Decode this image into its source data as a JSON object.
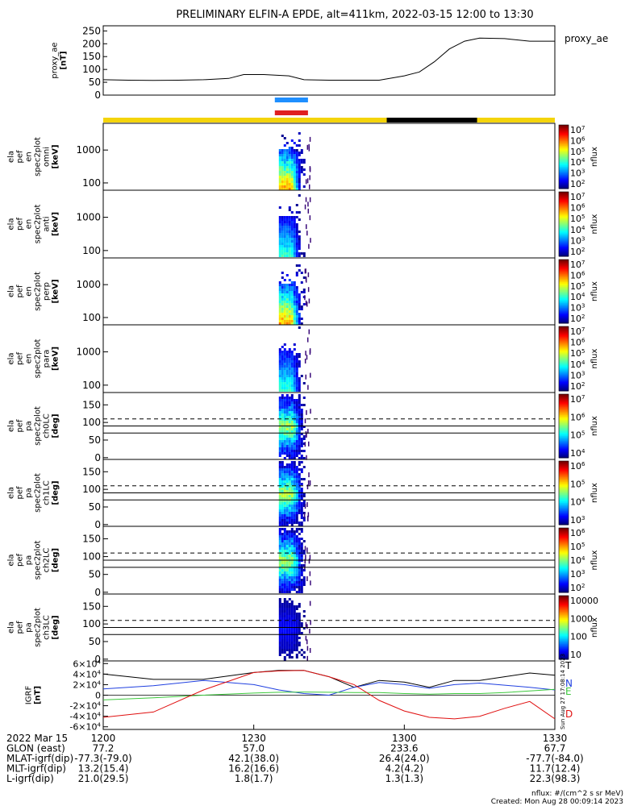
{
  "title": "PRELIMINARY ELFIN-A EPDE, alt=411km, 2022-03-15 12:00 to 13:30",
  "footer": {
    "units": "nflux: #/(cm^2 s sr MeV)",
    "created": "Created: Mon Aug 28 00:09:14 2023",
    "side_stamp": "Sun Aug 27 17:08:14 2023"
  },
  "time_axis": {
    "tick_labels": [
      "1200",
      "1230",
      "1300",
      "1330"
    ],
    "tick_minutes": [
      0,
      30,
      60,
      90
    ],
    "xlim_minutes": [
      0,
      90
    ]
  },
  "orbit_table": {
    "rows": [
      {
        "label": "2022 Mar 15",
        "values": [
          "1200",
          "1230",
          "1300",
          "1330"
        ]
      },
      {
        "label": "GLON (east)",
        "values": [
          "77.2",
          "57.0",
          "233.6",
          "67.7"
        ]
      },
      {
        "label": "MLAT-igrf(dip)",
        "values": [
          "-77.3(-79.0)",
          "42.1(38.0)",
          "26.4(24.0)",
          "-77.7(-84.0)"
        ]
      },
      {
        "label": "MLT-igrf(dip)",
        "values": [
          "13.2(15.4)",
          "16.2(16.6)",
          "4.2(4.2)",
          "11.7(12.4)"
        ]
      },
      {
        "label": "L-igrf(dip)",
        "values": [
          "21.0(29.5)",
          "1.8(1.7)",
          "1.3(1.3)",
          "22.3(98.3)"
        ]
      }
    ]
  },
  "colors": {
    "sci_blue": "#1f8fff",
    "sci_red": "#e02020",
    "status_yellow": "#f4d40b",
    "status_black": "#000000",
    "igrf_T": "#000000",
    "igrf_N": "#2040e0",
    "igrf_E": "#3cc83c",
    "igrf_D": "#e01010"
  },
  "chart_data": [
    {
      "type": "line",
      "panel": "proxy_ae",
      "ylabel_lines": [
        "proxy_ae",
        "[nT]"
      ],
      "legend": "proxy_ae",
      "ylim": [
        0,
        270
      ],
      "yticks": [
        "0",
        "50",
        "100",
        "150",
        "200",
        "250"
      ],
      "ytick_values": [
        0,
        50,
        100,
        150,
        200,
        250
      ],
      "x_minutes": [
        0,
        5,
        10,
        15,
        20,
        25,
        28,
        32,
        37,
        40,
        45,
        50,
        55,
        60,
        63,
        66,
        69,
        72,
        75,
        80,
        85,
        90
      ],
      "values": [
        60,
        58,
        57,
        58,
        60,
        65,
        80,
        80,
        75,
        60,
        58,
        58,
        58,
        75,
        90,
        130,
        180,
        210,
        222,
        220,
        210,
        210
      ]
    },
    {
      "type": "heatmap",
      "panel": "ela_pef_en_spec2plot_omni",
      "ylabel_lines": [
        "ela",
        "pef",
        "en",
        "spec2plot",
        "omni",
        "[keV]"
      ],
      "yticks": [
        "100",
        "1000"
      ],
      "ytick_values": [
        100,
        1000
      ],
      "ylim": [
        60,
        6500
      ],
      "yscale": "log",
      "colorbar": {
        "label": "nflux",
        "ticks": [
          "10^2",
          "10^3",
          "10^4",
          "10^5",
          "10^6",
          "10^7"
        ]
      },
      "activity_minutes": [
        35,
        40
      ]
    },
    {
      "type": "heatmap",
      "panel": "ela_pef_en_spec2plot_anti",
      "ylabel_lines": [
        "ela",
        "pef",
        "en",
        "spec2plot",
        "anti",
        "[keV]"
      ],
      "yticks": [
        "100",
        "1000"
      ],
      "ytick_values": [
        100,
        1000
      ],
      "ylim": [
        60,
        6500
      ],
      "yscale": "log",
      "colorbar": {
        "label": "nflux",
        "ticks": [
          "10^2",
          "10^3",
          "10^4",
          "10^5",
          "10^6",
          "10^7"
        ]
      },
      "activity_minutes": [
        35,
        40
      ]
    },
    {
      "type": "heatmap",
      "panel": "ela_pef_en_spec2plot_perp",
      "ylabel_lines": [
        "ela",
        "pef",
        "en",
        "spec2plot",
        "perp",
        "[keV]"
      ],
      "yticks": [
        "100",
        "1000"
      ],
      "ytick_values": [
        100,
        1000
      ],
      "ylim": [
        60,
        6500
      ],
      "yscale": "log",
      "colorbar": {
        "label": "nflux",
        "ticks": [
          "10^2",
          "10^3",
          "10^4",
          "10^5",
          "10^6",
          "10^7"
        ]
      },
      "activity_minutes": [
        35,
        40
      ]
    },
    {
      "type": "heatmap",
      "panel": "ela_pef_en_spec2plot_para",
      "ylabel_lines": [
        "ela",
        "pef",
        "en",
        "spec2plot",
        "para",
        "[keV]"
      ],
      "yticks": [
        "100",
        "1000"
      ],
      "ytick_values": [
        100,
        1000
      ],
      "ylim": [
        60,
        6500
      ],
      "yscale": "log",
      "colorbar": {
        "label": "nflux",
        "ticks": [
          "10^2",
          "10^3",
          "10^4",
          "10^5",
          "10^6",
          "10^7"
        ]
      },
      "activity_minutes": [
        35,
        40
      ]
    },
    {
      "type": "heatmap",
      "panel": "ela_pef_pa_spec2plot_ch0LC",
      "ylabel_lines": [
        "ela",
        "pef",
        "pa",
        "spec2plot",
        "ch0LC",
        "[deg]"
      ],
      "yticks": [
        "0",
        "50",
        "100",
        "150"
      ],
      "ytick_values": [
        0,
        50,
        100,
        150
      ],
      "ylim": [
        -5,
        185
      ],
      "loss_cone_deg": {
        "solid": [
          70,
          90
        ],
        "dashed": 110
      },
      "colorbar": {
        "label": "nflux",
        "ticks": [
          "10^4",
          "10^5",
          "10^6",
          "10^7"
        ]
      },
      "activity_minutes": [
        35,
        40
      ]
    },
    {
      "type": "heatmap",
      "panel": "ela_pef_pa_spec2plot_ch1LC",
      "ylabel_lines": [
        "ela",
        "pef",
        "pa",
        "spec2plot",
        "ch1LC",
        "[deg]"
      ],
      "yticks": [
        "0",
        "50",
        "100",
        "150"
      ],
      "ytick_values": [
        0,
        50,
        100,
        150
      ],
      "ylim": [
        -5,
        185
      ],
      "loss_cone_deg": {
        "solid": [
          70,
          90
        ],
        "dashed": 110
      },
      "colorbar": {
        "label": "nflux",
        "ticks": [
          "10^3",
          "10^4",
          "10^5",
          "10^6"
        ]
      },
      "activity_minutes": [
        35,
        40
      ]
    },
    {
      "type": "heatmap",
      "panel": "ela_pef_pa_spec2plot_ch2LC",
      "ylabel_lines": [
        "ela",
        "pef",
        "pa",
        "spec2plot",
        "ch2LC",
        "[deg]"
      ],
      "yticks": [
        "0",
        "50",
        "100",
        "150"
      ],
      "ytick_values": [
        0,
        50,
        100,
        150
      ],
      "ylim": [
        -5,
        185
      ],
      "loss_cone_deg": {
        "solid": [
          70,
          90
        ],
        "dashed": 110
      },
      "colorbar": {
        "label": "nflux",
        "ticks": [
          "10^2",
          "10^3",
          "10^4",
          "10^5",
          "10^6"
        ]
      },
      "activity_minutes": [
        35,
        40
      ]
    },
    {
      "type": "heatmap",
      "panel": "ela_pef_pa_spec2plot_ch3LC",
      "ylabel_lines": [
        "ela",
        "pef",
        "pa",
        "spec2plot",
        "ch3LC",
        "[deg]"
      ],
      "yticks": [
        "0",
        "50",
        "100",
        "150"
      ],
      "ytick_values": [
        0,
        50,
        100,
        150
      ],
      "ylim": [
        -5,
        185
      ],
      "loss_cone_deg": {
        "solid": [
          70,
          90
        ],
        "dashed": 110
      },
      "colorbar": {
        "label": "nflux",
        "ticks": [
          "10",
          "100",
          "1000",
          "10000"
        ]
      },
      "activity_minutes": [
        35,
        40
      ]
    },
    {
      "type": "line",
      "panel": "IGRF",
      "ylabel_lines": [
        "IGRF",
        "[nT]"
      ],
      "ylim": [
        -65000,
        65000
      ],
      "yticks": [
        "-6×10^4",
        "-4×10^4",
        "-2×10^4",
        "0",
        "2×10^4",
        "4×10^4",
        "6×10^4"
      ],
      "ytick_values": [
        -60000,
        -40000,
        -20000,
        0,
        20000,
        40000,
        60000
      ],
      "x_minutes": [
        0,
        10,
        20,
        30,
        35,
        40,
        45,
        50,
        55,
        60,
        65,
        70,
        75,
        80,
        85,
        90
      ],
      "series": [
        {
          "name": "T",
          "values": [
            40000,
            30000,
            30000,
            43000,
            47000,
            47000,
            35000,
            15000,
            28000,
            25000,
            15000,
            28000,
            28000,
            35000,
            42000,
            38000
          ]
        },
        {
          "name": "N",
          "values": [
            12000,
            18000,
            28000,
            20000,
            10000,
            3000,
            0,
            15000,
            24000,
            20000,
            13000,
            20000,
            23000,
            19000,
            15000,
            10000
          ]
        },
        {
          "name": "E",
          "values": [
            -9000,
            -5000,
            0,
            4000,
            5500,
            6000,
            5500,
            5000,
            5000,
            3000,
            2000,
            3000,
            3000,
            5000,
            8000,
            11000
          ]
        },
        {
          "name": "D",
          "values": [
            -42000,
            -32000,
            10000,
            43000,
            46000,
            47000,
            35000,
            20000,
            -10000,
            -30000,
            -42000,
            -45000,
            -40000,
            -25000,
            -12000,
            -45000
          ]
        }
      ]
    }
  ]
}
